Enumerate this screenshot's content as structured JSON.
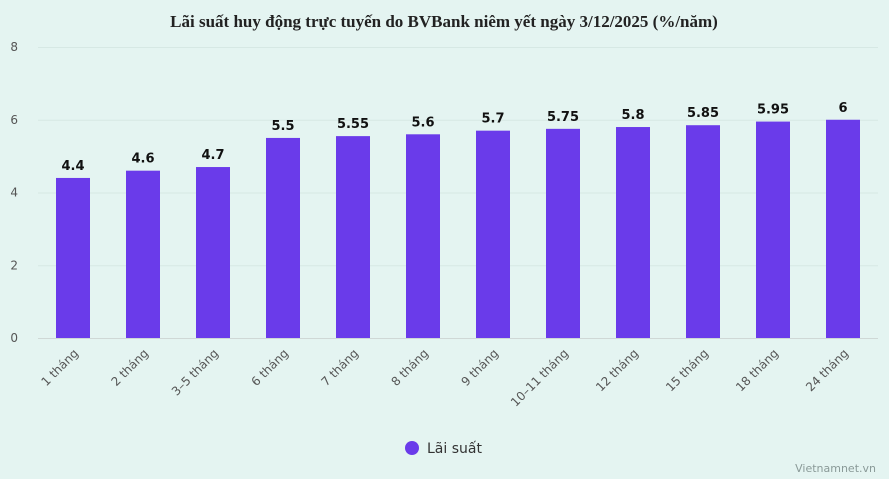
{
  "chart_data": {
    "type": "bar",
    "title": "Lãi suất huy động trực tuyến do BVBank niêm yết ngày 3/12/2025 (%/năm)",
    "categories": [
      "1 tháng",
      "2 tháng",
      "3–5 tháng",
      "6 tháng",
      "7 tháng",
      "8 tháng",
      "9 tháng",
      "10–11 tháng",
      "12 tháng",
      "15 tháng",
      "18 tháng",
      "24 tháng"
    ],
    "series": [
      {
        "name": "Lãi suất",
        "values": [
          4.4,
          4.6,
          4.7,
          5.5,
          5.55,
          5.6,
          5.7,
          5.75,
          5.8,
          5.85,
          5.95,
          6
        ],
        "color": "#6a3bea"
      }
    ],
    "data_labels": [
      "4.4",
      "4.6",
      "4.7",
      "5.5",
      "5.55",
      "5.6",
      "5.7",
      "5.75",
      "5.8",
      "5.85",
      "5.95",
      "6"
    ],
    "yticks": [
      "0",
      "2",
      "4",
      "6",
      "8"
    ],
    "ylim": [
      0,
      8
    ],
    "xlabel": "",
    "ylabel": "",
    "grid": true,
    "legend_position": "bottom-center"
  },
  "credit": "Vietnamnet.vn"
}
